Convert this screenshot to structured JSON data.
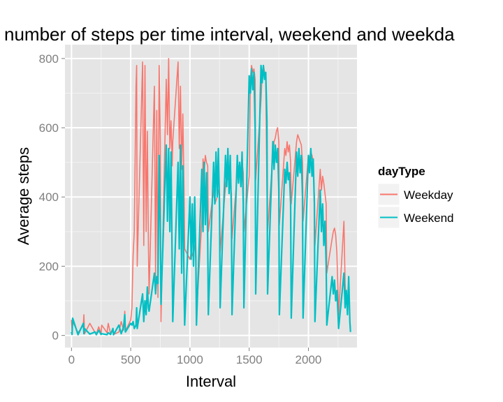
{
  "chart_data": {
    "type": "line",
    "title": "number of steps per time interval, weekend and weekda",
    "xlabel": "Interval",
    "ylabel": "Average steps",
    "xlim": [
      -55,
      2410
    ],
    "ylim": [
      -35,
      840
    ],
    "x_ticks": [
      0,
      500,
      1000,
      1500,
      2000
    ],
    "x_tick_labels": [
      "0",
      "500",
      "1000",
      "1500",
      "2000"
    ],
    "y_ticks": [
      0,
      200,
      400,
      600,
      800
    ],
    "y_tick_labels": [
      "0",
      "200",
      "400",
      "600",
      "800"
    ],
    "grid": true,
    "background": "#e5e5e5",
    "legend": {
      "title": "dayType",
      "position": "right",
      "entries": [
        {
          "label": "Weekday",
          "color": "#f8766d"
        },
        {
          "label": "Weekend",
          "color": "#00bfc4"
        }
      ]
    },
    "series": [
      {
        "name": "Weekday",
        "color": "#f8766d",
        "x": [
          0,
          5,
          10,
          55,
          100,
          105,
          110,
          155,
          200,
          210,
          230,
          250,
          255,
          300,
          310,
          330,
          350,
          355,
          400,
          420,
          440,
          450,
          455,
          500,
          510,
          520,
          530,
          545,
          550,
          555,
          600,
          610,
          620,
          630,
          640,
          650,
          655,
          700,
          710,
          720,
          730,
          740,
          750,
          755,
          800,
          810,
          820,
          830,
          840,
          850,
          855,
          900,
          910,
          920,
          930,
          940,
          950,
          955,
          1000,
          1010,
          1020,
          1030,
          1040,
          1050,
          1055,
          1100,
          1110,
          1120,
          1130,
          1140,
          1150,
          1155,
          1200,
          1210,
          1220,
          1230,
          1240,
          1250,
          1255,
          1300,
          1310,
          1320,
          1330,
          1340,
          1350,
          1355,
          1400,
          1410,
          1420,
          1430,
          1440,
          1450,
          1455,
          1500,
          1510,
          1520,
          1530,
          1540,
          1550,
          1555,
          1600,
          1610,
          1620,
          1630,
          1640,
          1650,
          1655,
          1700,
          1710,
          1720,
          1730,
          1740,
          1750,
          1755,
          1800,
          1810,
          1820,
          1830,
          1840,
          1850,
          1855,
          1900,
          1910,
          1920,
          1930,
          1940,
          1950,
          1955,
          2000,
          2010,
          2020,
          2030,
          2040,
          2050,
          2055,
          2100,
          2110,
          2120,
          2130,
          2140,
          2150,
          2155,
          2200,
          2210,
          2220,
          2230,
          2240,
          2250,
          2255,
          2300,
          2310,
          2320,
          2330,
          2340,
          2350,
          2355
        ],
        "y": [
          45,
          10,
          40,
          8,
          30,
          60,
          5,
          35,
          8,
          4,
          25,
          5,
          30,
          8,
          35,
          5,
          20,
          3,
          10,
          40,
          15,
          70,
          12,
          45,
          80,
          230,
          300,
          720,
          780,
          200,
          790,
          260,
          780,
          300,
          590,
          250,
          120,
          720,
          160,
          650,
          110,
          780,
          560,
          40,
          740,
          580,
          800,
          540,
          620,
          490,
          560,
          790,
          540,
          720,
          480,
          640,
          420,
          250,
          220,
          240,
          230,
          250,
          260,
          230,
          60,
          330,
          510,
          470,
          520,
          500,
          490,
          300,
          420,
          380,
          390,
          400,
          420,
          410,
          240,
          430,
          460,
          450,
          470,
          430,
          410,
          280,
          470,
          490,
          460,
          480,
          500,
          470,
          300,
          460,
          740,
          780,
          760,
          770,
          740,
          450,
          680,
          760,
          780,
          760,
          740,
          420,
          300,
          520,
          560,
          570,
          590,
          600,
          560,
          320,
          540,
          520,
          560,
          530,
          550,
          500,
          380,
          560,
          580,
          570,
          560,
          550,
          500,
          330,
          520,
          510,
          530,
          520,
          500,
          400,
          260,
          480,
          420,
          460,
          440,
          410,
          380,
          180,
          280,
          300,
          310,
          290,
          240,
          120,
          60,
          330,
          150,
          100,
          80,
          150,
          40,
          20
        ]
      },
      {
        "name": "Weekend",
        "color": "#00bfc4",
        "x": [
          0,
          5,
          10,
          55,
          100,
          105,
          110,
          155,
          200,
          210,
          230,
          250,
          255,
          300,
          310,
          330,
          350,
          355,
          400,
          420,
          440,
          450,
          455,
          500,
          510,
          520,
          530,
          545,
          550,
          555,
          600,
          610,
          620,
          630,
          640,
          650,
          655,
          700,
          710,
          720,
          730,
          740,
          750,
          755,
          800,
          810,
          820,
          830,
          840,
          850,
          855,
          900,
          910,
          920,
          930,
          940,
          950,
          955,
          1000,
          1010,
          1020,
          1030,
          1040,
          1050,
          1055,
          1100,
          1110,
          1120,
          1130,
          1140,
          1150,
          1155,
          1200,
          1210,
          1220,
          1230,
          1240,
          1250,
          1255,
          1300,
          1310,
          1320,
          1330,
          1340,
          1350,
          1355,
          1400,
          1410,
          1420,
          1430,
          1440,
          1450,
          1455,
          1500,
          1510,
          1520,
          1530,
          1540,
          1550,
          1555,
          1600,
          1610,
          1620,
          1630,
          1640,
          1650,
          1655,
          1700,
          1710,
          1720,
          1730,
          1740,
          1750,
          1755,
          1800,
          1810,
          1820,
          1830,
          1840,
          1850,
          1855,
          1900,
          1910,
          1920,
          1930,
          1940,
          1950,
          1955,
          2000,
          2010,
          2020,
          2030,
          2040,
          2050,
          2055,
          2100,
          2110,
          2120,
          2130,
          2140,
          2150,
          2155,
          2200,
          2210,
          2220,
          2230,
          2240,
          2250,
          2255,
          2300,
          2310,
          2320,
          2330,
          2340,
          2350,
          2355
        ],
        "y": [
          10,
          3,
          50,
          2,
          35,
          5,
          20,
          4,
          10,
          2,
          15,
          3,
          5,
          2,
          8,
          3,
          20,
          2,
          30,
          5,
          25,
          60,
          10,
          35,
          30,
          40,
          20,
          30,
          80,
          20,
          120,
          40,
          100,
          60,
          140,
          80,
          70,
          180,
          120,
          170,
          150,
          520,
          300,
          90,
          550,
          330,
          540,
          300,
          530,
          200,
          40,
          500,
          250,
          550,
          180,
          490,
          150,
          30,
          400,
          220,
          380,
          200,
          400,
          210,
          30,
          480,
          300,
          500,
          320,
          470,
          280,
          60,
          500,
          380,
          530,
          400,
          540,
          360,
          80,
          520,
          430,
          540,
          410,
          520,
          350,
          60,
          520,
          440,
          500,
          430,
          530,
          380,
          80,
          750,
          700,
          770,
          710,
          760,
          600,
          120,
          780,
          730,
          780,
          740,
          760,
          620,
          120,
          560,
          480,
          550,
          500,
          540,
          420,
          60,
          480,
          440,
          500,
          450,
          470,
          380,
          50,
          530,
          460,
          540,
          470,
          520,
          400,
          50,
          520,
          470,
          540,
          460,
          510,
          380,
          40,
          420,
          300,
          380,
          260,
          330,
          200,
          30,
          170,
          120,
          160,
          100,
          130,
          60,
          20,
          180,
          80,
          130,
          60,
          170,
          40,
          10
        ]
      }
    ]
  }
}
